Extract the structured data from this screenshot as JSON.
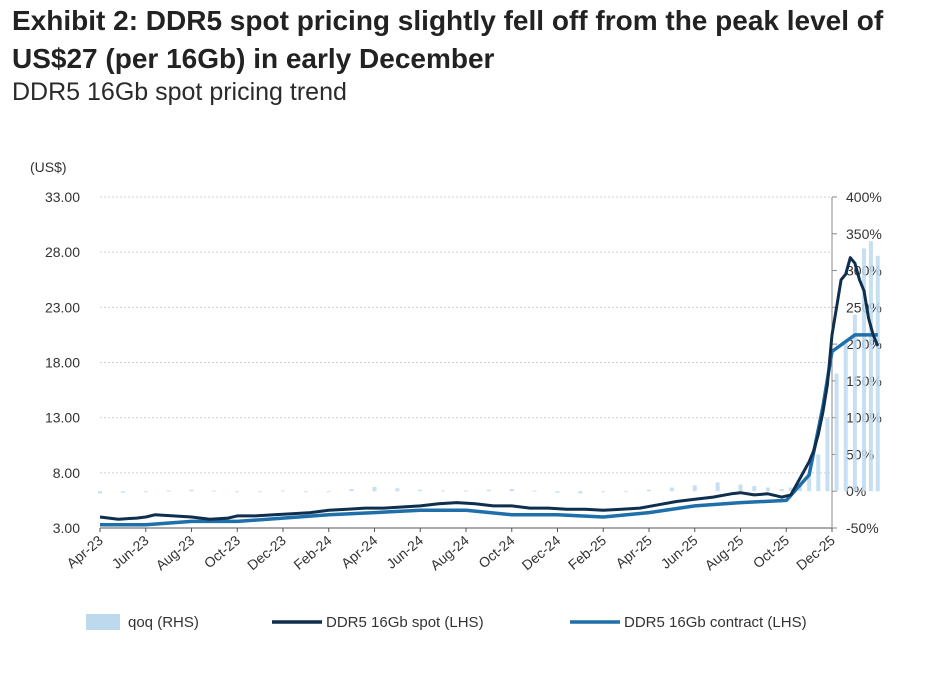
{
  "header": {
    "title": "Exhibit 2: DDR5 spot pricing slightly fell off from the peak level of US$27 (per 16Gb) in early December",
    "subtitle": "DDR5 16Gb spot pricing trend"
  },
  "chart_data": {
    "type": "line",
    "unit_label": "(US$)",
    "categories": [
      "Apr-23",
      "Jun-23",
      "Aug-23",
      "Oct-23",
      "Dec-23",
      "Feb-24",
      "Apr-24",
      "Jun-24",
      "Aug-24",
      "Oct-24",
      "Dec-24",
      "Feb-25",
      "Apr-25",
      "Jun-25",
      "Aug-25",
      "Oct-25",
      "Dec-25"
    ],
    "y_left": {
      "min": 3,
      "max": 33,
      "ticks": [
        "33.00",
        "28.00",
        "23.00",
        "18.00",
        "13.00",
        "8.00",
        "3.00"
      ]
    },
    "y_right": {
      "min": -50,
      "max": 400,
      "ticks": [
        "400%",
        "350%",
        "300%",
        "250%",
        "200%",
        "150%",
        "100%",
        "50%",
        "0%",
        "-50%"
      ]
    },
    "grid": true,
    "legend_position": "bottom",
    "series": [
      {
        "name": "qoq (RHS)",
        "kind": "bar",
        "axis": "right",
        "color": "#bcd9ee",
        "x": [
          0.0,
          0.5,
          1.0,
          1.5,
          2.0,
          2.5,
          3.0,
          3.5,
          4.0,
          4.5,
          5.0,
          5.5,
          6.0,
          6.5,
          7.0,
          7.5,
          8.0,
          8.5,
          9.0,
          9.5,
          10.0,
          10.5,
          11.0,
          11.5,
          12.0,
          12.5,
          13.0,
          13.5,
          14.0,
          14.3,
          14.6,
          14.9,
          15.1,
          15.3,
          15.5,
          15.7,
          15.9,
          16.1,
          16.3,
          16.5,
          16.7,
          16.85,
          17.0
        ],
        "values": [
          -3,
          -2,
          0,
          1,
          2,
          1,
          -1,
          0,
          1,
          -1,
          0,
          3,
          6,
          4,
          2,
          1,
          1,
          2,
          3,
          1,
          -2,
          -3,
          -1,
          0,
          2,
          5,
          8,
          12,
          9,
          7,
          5,
          3,
          5,
          10,
          25,
          50,
          100,
          160,
          200,
          240,
          330,
          340,
          320
        ]
      },
      {
        "name": "DDR5 16Gb spot (LHS)",
        "kind": "line",
        "axis": "left",
        "color": "#0f2f4f",
        "x": [
          0.0,
          0.4,
          0.8,
          1.0,
          1.2,
          1.6,
          2.0,
          2.4,
          2.8,
          3.0,
          3.4,
          3.8,
          4.2,
          4.6,
          5.0,
          5.4,
          5.8,
          6.2,
          6.6,
          7.0,
          7.4,
          7.8,
          8.2,
          8.6,
          9.0,
          9.4,
          9.8,
          10.2,
          10.6,
          11.0,
          11.4,
          11.8,
          12.2,
          12.6,
          13.0,
          13.4,
          13.8,
          14.0,
          14.3,
          14.6,
          14.9,
          15.1,
          15.3,
          15.5,
          15.6,
          15.7,
          15.8,
          15.9,
          16.0,
          16.1,
          16.2,
          16.3,
          16.4,
          16.5,
          16.6,
          16.7,
          16.8,
          16.9,
          17.0
        ],
        "values": [
          4.0,
          3.8,
          3.9,
          4.0,
          4.2,
          4.1,
          4.0,
          3.8,
          3.9,
          4.1,
          4.1,
          4.2,
          4.3,
          4.4,
          4.6,
          4.7,
          4.8,
          4.8,
          4.9,
          5.0,
          5.2,
          5.3,
          5.2,
          5.0,
          5.0,
          4.8,
          4.8,
          4.7,
          4.7,
          4.6,
          4.7,
          4.8,
          5.1,
          5.4,
          5.6,
          5.8,
          6.1,
          6.2,
          6.0,
          6.1,
          5.8,
          6.0,
          7.5,
          9.0,
          10.0,
          11.5,
          13.5,
          16.0,
          20.5,
          23.0,
          25.5,
          26.0,
          27.5,
          27.0,
          25.5,
          24.5,
          22.0,
          20.5,
          19.5
        ]
      },
      {
        "name": "DDR5 16Gb contract (LHS)",
        "kind": "line",
        "axis": "left",
        "color": "#1f6fab",
        "x": [
          0.0,
          1.0,
          2.0,
          3.0,
          4.0,
          5.0,
          6.0,
          7.0,
          8.0,
          9.0,
          10.0,
          11.0,
          12.0,
          13.0,
          14.0,
          15.0,
          15.5,
          15.8,
          16.0,
          16.5,
          17.0
        ],
        "values": [
          3.3,
          3.3,
          3.6,
          3.6,
          3.9,
          4.2,
          4.4,
          4.6,
          4.6,
          4.2,
          4.2,
          4.0,
          4.4,
          5.0,
          5.3,
          5.5,
          7.8,
          14.0,
          19.0,
          20.5,
          20.5
        ]
      }
    ]
  }
}
